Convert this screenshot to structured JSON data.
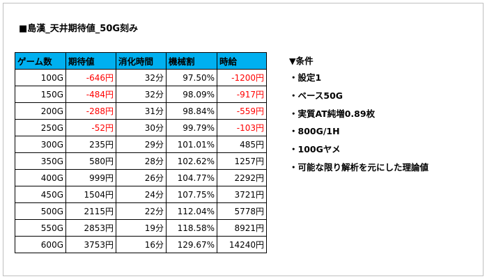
{
  "title": "■島漢_天井期待値_50G刻み",
  "table": {
    "headers": [
      "ゲーム数",
      "期待値",
      "消化時間",
      "機械割",
      "時給"
    ],
    "rows": [
      [
        "100G",
        "-646円",
        "32分",
        "97.50%",
        "-1200円"
      ],
      [
        "150G",
        "-484円",
        "32分",
        "98.09%",
        "-917円"
      ],
      [
        "200G",
        "-288円",
        "31分",
        "98.84%",
        "-559円"
      ],
      [
        "250G",
        "-52円",
        "30分",
        "99.79%",
        "-103円"
      ],
      [
        "300G",
        "235円",
        "29分",
        "101.01%",
        "485円"
      ],
      [
        "350G",
        "580円",
        "28分",
        "102.62%",
        "1257円"
      ],
      [
        "400G",
        "999円",
        "26分",
        "104.77%",
        "2292円"
      ],
      [
        "450G",
        "1504円",
        "24分",
        "107.75%",
        "3721円"
      ],
      [
        "500G",
        "2115円",
        "22分",
        "112.04%",
        "5778円"
      ],
      [
        "550G",
        "2853円",
        "19分",
        "118.58%",
        "8921円"
      ],
      [
        "600G",
        "3753円",
        "16分",
        "129.67%",
        "14240円"
      ]
    ]
  },
  "conditions": {
    "heading": "▼条件",
    "items": [
      "・設定1",
      "・ベース50G",
      "・実質AT純増0.89枚",
      "・800G/1H",
      "・100Gヤメ",
      "・可能な限り解析を元にした理論値"
    ]
  },
  "colors": {
    "header_bg": "#00b0f0",
    "negative": "#ff0000"
  }
}
